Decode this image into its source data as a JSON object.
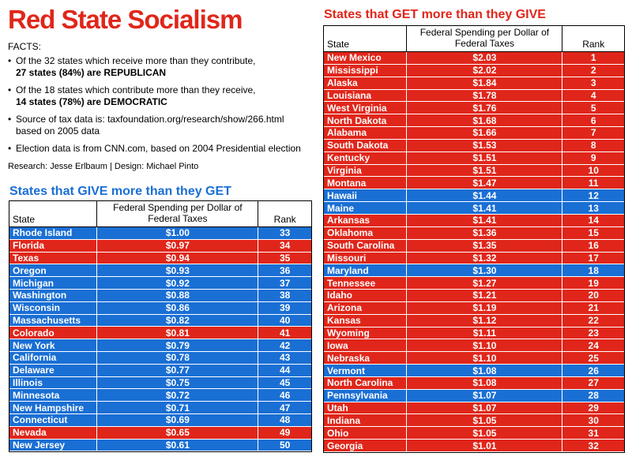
{
  "title": "Red State Socialism",
  "facts_label": "FACTS:",
  "facts": [
    {
      "text": "Of the 32 states which receive more than they contribute,",
      "emphasis": "27 states (84%) are REPUBLICAN"
    },
    {
      "text": "Of the 18 states which contribute more than they receive,",
      "emphasis": "14 states (78%) are DEMOCRATIC"
    },
    {
      "text": "Source of tax data is: taxfoundation.org/research/show/266.html based on 2005 data"
    },
    {
      "text": "Election data is from CNN.com, based on 2004 Presidential election"
    }
  ],
  "credits": "Research: Jesse Erlbaum | Design: Michael Pinto",
  "tables": [
    {
      "title": "States that GIVE more than they GET",
      "title_color": "#1a6fd4",
      "columns": [
        "State",
        "Federal Spending per Dollar of Federal Taxes",
        "Rank"
      ],
      "rows": [
        [
          "Rhode Island",
          "$1.00",
          33,
          "#1a6fd4"
        ],
        [
          "Florida",
          "$0.97",
          34,
          "#e0261a"
        ],
        [
          "Texas",
          "$0.94",
          35,
          "#e0261a"
        ],
        [
          "Oregon",
          "$0.93",
          36,
          "#1a6fd4"
        ],
        [
          "Michigan",
          "$0.92",
          37,
          "#1a6fd4"
        ],
        [
          "Washington",
          "$0.88",
          38,
          "#1a6fd4"
        ],
        [
          "Wisconsin",
          "$0.86",
          39,
          "#1a6fd4"
        ],
        [
          "Massachusetts",
          "$0.82",
          40,
          "#1a6fd4"
        ],
        [
          "Colorado",
          "$0.81",
          41,
          "#e0261a"
        ],
        [
          "New York",
          "$0.79",
          42,
          "#1a6fd4"
        ],
        [
          "California",
          "$0.78",
          43,
          "#1a6fd4"
        ],
        [
          "Delaware",
          "$0.77",
          44,
          "#1a6fd4"
        ],
        [
          "Illinois",
          "$0.75",
          45,
          "#1a6fd4"
        ],
        [
          "Minnesota",
          "$0.72",
          46,
          "#1a6fd4"
        ],
        [
          "New Hampshire",
          "$0.71",
          47,
          "#1a6fd4"
        ],
        [
          "Connecticut",
          "$0.69",
          48,
          "#1a6fd4"
        ],
        [
          "Nevada",
          "$0.65",
          49,
          "#e0261a"
        ],
        [
          "New Jersey",
          "$0.61",
          50,
          "#1a6fd4"
        ]
      ]
    },
    {
      "title": "States that GET more than they GIVE",
      "title_color": "#e0261a",
      "columns": [
        "State",
        "Federal Spending per Dollar of Federal Taxes",
        "Rank"
      ],
      "rows": [
        [
          "New Mexico",
          "$2.03",
          1,
          "#e0261a"
        ],
        [
          "Mississippi",
          "$2.02",
          2,
          "#e0261a"
        ],
        [
          "Alaska",
          "$1.84",
          3,
          "#e0261a"
        ],
        [
          "Louisiana",
          "$1.78",
          4,
          "#e0261a"
        ],
        [
          "West Virginia",
          "$1.76",
          5,
          "#e0261a"
        ],
        [
          "North Dakota",
          "$1.68",
          6,
          "#e0261a"
        ],
        [
          "Alabama",
          "$1.66",
          7,
          "#e0261a"
        ],
        [
          "South Dakota",
          "$1.53",
          8,
          "#e0261a"
        ],
        [
          "Kentucky",
          "$1.51",
          9,
          "#e0261a"
        ],
        [
          "Virginia",
          "$1.51",
          10,
          "#e0261a"
        ],
        [
          "Montana",
          "$1.47",
          11,
          "#e0261a"
        ],
        [
          "Hawaii",
          "$1.44",
          12,
          "#1a6fd4"
        ],
        [
          "Maine",
          "$1.41",
          13,
          "#1a6fd4"
        ],
        [
          "Arkansas",
          "$1.41",
          14,
          "#e0261a"
        ],
        [
          "Oklahoma",
          "$1.36",
          15,
          "#e0261a"
        ],
        [
          "South Carolina",
          "$1.35",
          16,
          "#e0261a"
        ],
        [
          "Missouri",
          "$1.32",
          17,
          "#e0261a"
        ],
        [
          "Maryland",
          "$1.30",
          18,
          "#1a6fd4"
        ],
        [
          "Tennessee",
          "$1.27",
          19,
          "#e0261a"
        ],
        [
          "Idaho",
          "$1.21",
          20,
          "#e0261a"
        ],
        [
          "Arizona",
          "$1.19",
          21,
          "#e0261a"
        ],
        [
          "Kansas",
          "$1.12",
          22,
          "#e0261a"
        ],
        [
          "Wyoming",
          "$1.11",
          23,
          "#e0261a"
        ],
        [
          "Iowa",
          "$1.10",
          24,
          "#e0261a"
        ],
        [
          "Nebraska",
          "$1.10",
          25,
          "#e0261a"
        ],
        [
          "Vermont",
          "$1.08",
          26,
          "#1a6fd4"
        ],
        [
          "North Carolina",
          "$1.08",
          27,
          "#e0261a"
        ],
        [
          "Pennsylvania",
          "$1.07",
          28,
          "#1a6fd4"
        ],
        [
          "Utah",
          "$1.07",
          29,
          "#e0261a"
        ],
        [
          "Indiana",
          "$1.05",
          30,
          "#e0261a"
        ],
        [
          "Ohio",
          "$1.05",
          31,
          "#e0261a"
        ],
        [
          "Georgia",
          "$1.01",
          32,
          "#e0261a"
        ]
      ]
    }
  ]
}
